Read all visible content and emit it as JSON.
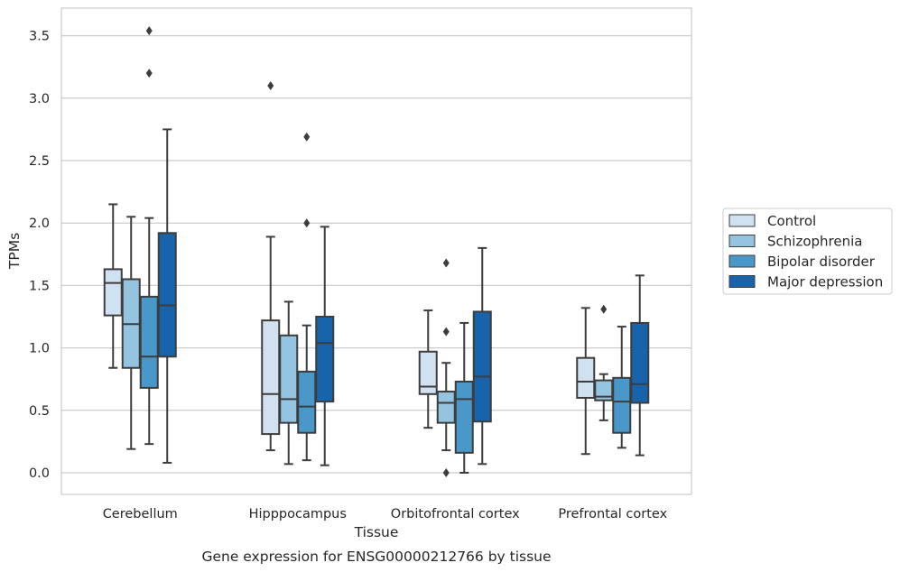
{
  "chart_data": {
    "type": "boxplot",
    "caption": "Gene expression for ENSG00000212766 by tissue",
    "xlabel": "Tissue",
    "ylabel": "TPMs",
    "ylim": [
      -0.17,
      3.72
    ],
    "yticks": [
      0.0,
      0.5,
      1.0,
      1.5,
      2.0,
      2.5,
      3.0,
      3.5
    ],
    "ytick_labels": [
      "0.0",
      "0.5",
      "1.0",
      "1.5",
      "2.0",
      "2.5",
      "3.0",
      "3.5"
    ],
    "grid": "horizontal",
    "legend_placement": "center-right outside",
    "categories": [
      "Cerebellum",
      "Hipppocampus",
      "Orbitofrontal cortex",
      "Prefrontal cortex"
    ],
    "series": [
      {
        "name": "Control",
        "color": "#d0e1f2",
        "boxes": [
          {
            "whislo": 0.84,
            "q1": 1.26,
            "med": 1.52,
            "q3": 1.63,
            "whishi": 2.15,
            "fliers": []
          },
          {
            "whislo": 0.18,
            "q1": 0.31,
            "med": 0.63,
            "q3": 1.22,
            "whishi": 1.89,
            "fliers": [
              3.1
            ]
          },
          {
            "whislo": 0.36,
            "q1": 0.63,
            "med": 0.69,
            "q3": 0.97,
            "whishi": 1.3,
            "fliers": []
          },
          {
            "whislo": 0.15,
            "q1": 0.6,
            "med": 0.73,
            "q3": 0.92,
            "whishi": 1.32,
            "fliers": []
          }
        ]
      },
      {
        "name": "Schizophrenia",
        "color": "#94c4df",
        "boxes": [
          {
            "whislo": 0.19,
            "q1": 0.84,
            "med": 1.19,
            "q3": 1.55,
            "whishi": 2.05,
            "fliers": []
          },
          {
            "whislo": 0.07,
            "q1": 0.4,
            "med": 0.59,
            "q3": 1.1,
            "whishi": 1.37,
            "fliers": []
          },
          {
            "whislo": 0.18,
            "q1": 0.4,
            "med": 0.56,
            "q3": 0.65,
            "whishi": 0.88,
            "fliers": [
              1.68,
              1.13,
              0.0
            ]
          },
          {
            "whislo": 0.42,
            "q1": 0.58,
            "med": 0.61,
            "q3": 0.74,
            "whishi": 0.79,
            "fliers": [
              1.31
            ]
          }
        ]
      },
      {
        "name": "Bipolar disorder",
        "color": "#4a98c9",
        "boxes": [
          {
            "whislo": 0.23,
            "q1": 0.68,
            "med": 0.93,
            "q3": 1.41,
            "whishi": 2.04,
            "fliers": [
              3.54,
              3.2
            ]
          },
          {
            "whislo": 0.1,
            "q1": 0.32,
            "med": 0.53,
            "q3": 0.81,
            "whishi": 1.18,
            "fliers": [
              2.69,
              2.0
            ]
          },
          {
            "whislo": 0.0,
            "q1": 0.16,
            "med": 0.59,
            "q3": 0.73,
            "whishi": 1.2,
            "fliers": []
          },
          {
            "whislo": 0.2,
            "q1": 0.32,
            "med": 0.57,
            "q3": 0.76,
            "whishi": 1.17,
            "fliers": []
          }
        ]
      },
      {
        "name": "Major depression",
        "color": "#1764ab",
        "boxes": [
          {
            "whislo": 0.08,
            "q1": 0.93,
            "med": 1.34,
            "q3": 1.92,
            "whishi": 2.75,
            "fliers": []
          },
          {
            "whislo": 0.06,
            "q1": 0.57,
            "med": 1.04,
            "q3": 1.25,
            "whishi": 1.97,
            "fliers": []
          },
          {
            "whislo": 0.07,
            "q1": 0.41,
            "med": 0.77,
            "q3": 1.29,
            "whishi": 1.8,
            "fliers": []
          },
          {
            "whislo": 0.14,
            "q1": 0.56,
            "med": 0.71,
            "q3": 1.2,
            "whishi": 1.58,
            "fliers": []
          }
        ]
      }
    ]
  }
}
